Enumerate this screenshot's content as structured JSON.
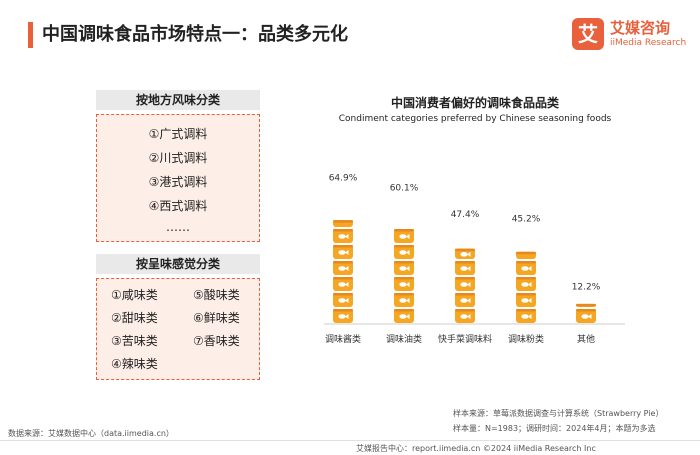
{
  "header": {
    "title": "中国调味食品市场特点一：品类多元化"
  },
  "logo": {
    "mark": "艾",
    "name_cn": "艾媒咨询",
    "name_en": "iiMedia Research"
  },
  "panel_region": {
    "header": "按地方风味分类",
    "items": [
      "①广式调料",
      "②川式调料",
      "③港式调料",
      "④西式调料",
      "……"
    ]
  },
  "panel_taste": {
    "header": "按呈味感觉分类",
    "items": [
      "①咸味类",
      "⑤酸味类",
      "②甜味类",
      "⑥鲜味类",
      "③苦味类",
      "⑦香味类",
      "④辣味类"
    ]
  },
  "chart_data": {
    "type": "bar",
    "title": "中国消费者偏好的调味食品品类",
    "subtitle": "Condiment categories preferred by Chinese seasoning foods",
    "categories": [
      "调味酱类",
      "调味油类",
      "快手菜调味料",
      "调味粉类",
      "其他"
    ],
    "values": [
      64.9,
      60.1,
      47.4,
      45.2,
      12.2
    ],
    "value_labels": [
      "64.9%",
      "60.1%",
      "47.4%",
      "45.2%",
      "12.2%"
    ],
    "unit": "%",
    "ylim": [
      0,
      70
    ],
    "style": "pictorial-stacked-cans",
    "colors": {
      "can": "#f5a623",
      "can_dark": "#e8891e",
      "fish": "#ffffff"
    }
  },
  "source": {
    "left": "数据来源：艾媒数据中心（data.iimedia.cn）",
    "right_line1": "样本来源：草莓派数据调查与计算系统（Strawberry Pie）",
    "right_line2": "样本量：N=1983；调研时间：2024年4月；本题为多选"
  },
  "footer": {
    "text": "艾媒报告中心：report.iimedia.cn    ©2024  iiMedia Research Inc"
  },
  "colors": {
    "accent": "#e8603c",
    "panel_bg": "#fdeee8",
    "header_bg": "#e9e9e9"
  }
}
